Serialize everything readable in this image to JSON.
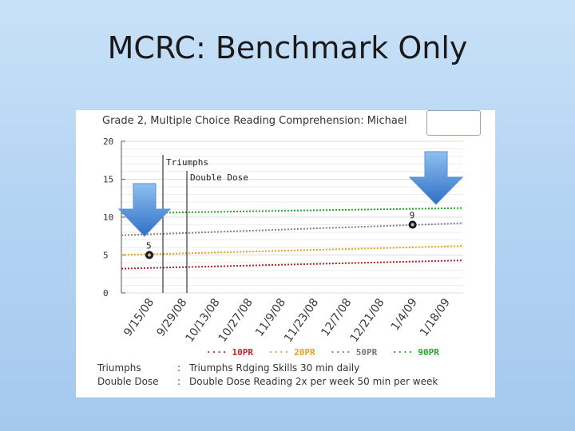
{
  "slide": {
    "title": "MCRC: Benchmark Only"
  },
  "chart_data": {
    "type": "line",
    "title": "Grade 2, Multiple Choice Reading Comprehension: Michael",
    "categories": [
      "9/15/08",
      "9/29/08",
      "10/13/08",
      "10/27/08",
      "11/9/08",
      "11/23/08",
      "12/7/08",
      "12/21/08",
      "1/4/09",
      "1/18/09"
    ],
    "ylim": [
      0,
      20
    ],
    "yticks": [
      0,
      5,
      10,
      15,
      20
    ],
    "series": [
      {
        "name": "10PR",
        "color": "#b22222",
        "start": 3.2,
        "end": 4.3
      },
      {
        "name": "20PR",
        "color": "#e8a020",
        "start": 5.0,
        "end": 6.2
      },
      {
        "name": "50PR",
        "color": "#808080",
        "start": 7.6,
        "end": 9.2
      },
      {
        "name": "90PR",
        "color": "#22aa22",
        "start": 10.5,
        "end": 11.2
      }
    ],
    "points": [
      {
        "x": "9/15/08",
        "y": 5,
        "label": "5"
      },
      {
        "x": "1/4/09",
        "y": 9,
        "label": "9"
      }
    ],
    "phase_lines": [
      {
        "label": "Triumphs",
        "after": "9/15/08"
      },
      {
        "label": "Double Dose",
        "after": "9/29/08"
      }
    ]
  },
  "legend": [
    {
      "label": "10PR",
      "color": "#cc2222"
    },
    {
      "label": "20PR",
      "color": "#e8a020"
    },
    {
      "label": "50PR",
      "color": "#777777"
    },
    {
      "label": "90PR",
      "color": "#22aa22"
    }
  ],
  "key": [
    {
      "term": "Triumphs",
      "sep": ":",
      "desc": "Triumphs Rdging Skills 30 min daily"
    },
    {
      "term": "Double Dose",
      "sep": ":",
      "desc": "Double Dose Reading 2x per week 50 min per week"
    }
  ],
  "icons": [
    "down-arrow-icon",
    "down-arrow-icon"
  ]
}
